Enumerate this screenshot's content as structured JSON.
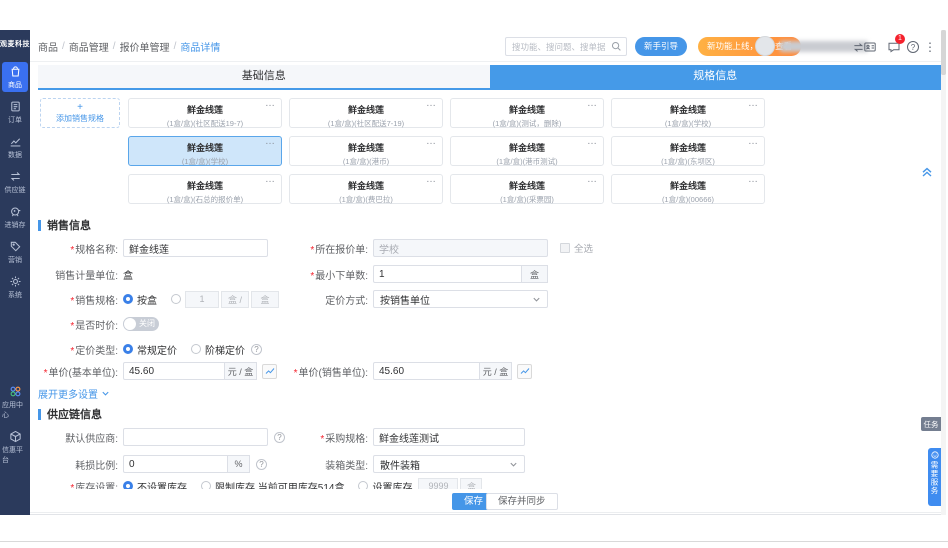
{
  "app": {
    "logo": "观麦科技"
  },
  "colors": {
    "accent": "#4596e8",
    "sidebar": "#2b3a5c",
    "active_tile": "#3a70f0",
    "orange": "#ff9a43",
    "badge_red": "#f5222d",
    "selected_card": "#cfe6fa"
  },
  "sidebar": {
    "items": [
      {
        "id": "goods",
        "label": "商品",
        "icon": "bag-icon",
        "active": true
      },
      {
        "id": "orders",
        "label": "订单",
        "icon": "order-icon",
        "active": false
      },
      {
        "id": "data",
        "label": "数据",
        "icon": "chart-icon",
        "active": false
      },
      {
        "id": "supply-chain",
        "label": "供应链",
        "icon": "swap-arrows-icon",
        "active": false
      },
      {
        "id": "inventory",
        "label": "进销存",
        "icon": "piggy-icon",
        "active": false
      },
      {
        "id": "marketing",
        "label": "营销",
        "icon": "tag-icon",
        "active": false
      },
      {
        "id": "system",
        "label": "系统",
        "icon": "gear-icon",
        "active": false
      }
    ],
    "bottom_items": [
      {
        "id": "app-center",
        "label": "应用中心",
        "icon": "apps-icon",
        "active": false
      },
      {
        "id": "info-platform",
        "label": "信惠平台",
        "icon": "cube-icon",
        "active": false
      }
    ]
  },
  "header": {
    "breadcrumb": [
      "商品",
      "商品管理",
      "报价单管理",
      "商品详情"
    ],
    "search_placeholder": "搜功能、搜问题、搜单据",
    "guide_button": "新手引导",
    "promo_button": "新功能上线，点击查看",
    "message_badge": "1"
  },
  "tabs": [
    {
      "label": "基础信息",
      "active": false
    },
    {
      "label": "规格信息",
      "active": true
    }
  ],
  "specs": {
    "add_plus": "+",
    "add_button": "添加销售规格",
    "cards": [
      {
        "name": "鲜金线莲",
        "sub": "(1盒/盒)(社区配送19-7)",
        "selected": false
      },
      {
        "name": "鲜金线莲",
        "sub": "(1盒/盒)(社区配送7-19)",
        "selected": false
      },
      {
        "name": "鲜金线莲",
        "sub": "(1盒/盒)(测试，删除)",
        "selected": false
      },
      {
        "name": "鲜金线莲",
        "sub": "(1盒/盒)(学校)",
        "selected": false
      },
      {
        "name": "鲜金线莲",
        "sub": "(1盒/盒)(学校)",
        "selected": true
      },
      {
        "name": "鲜金线莲",
        "sub": "(1盒/盒)(港币)",
        "selected": false
      },
      {
        "name": "鲜金线莲",
        "sub": "(1盒/盒)(港币测试)",
        "selected": false
      },
      {
        "name": "鲜金线莲",
        "sub": "(1盒/盒)(东坝区)",
        "selected": false
      },
      {
        "name": "鲜金线莲",
        "sub": "(1盒/盒)(石总的报价单)",
        "selected": false
      },
      {
        "name": "鲜金线莲",
        "sub": "(1盒/盒)(费巴拉)",
        "selected": false
      },
      {
        "name": "鲜金线莲",
        "sub": "(1盒/盒)(采票园)",
        "selected": false
      },
      {
        "name": "鲜金线莲",
        "sub": "(1盒/盒)(00666)",
        "selected": false
      }
    ]
  },
  "sales": {
    "title": "销售信息",
    "rows": {
      "spec_name_label": "*规格名称:",
      "spec_name_value": "鲜金线莲",
      "quote_label": "*所在报价单:",
      "quote_value": "学校",
      "select_all_label": "全选",
      "unit_label": "销售计量单位:",
      "unit_value": "盒",
      "min_order_label": "*最小下单数:",
      "min_order_value": "1",
      "min_order_unit": "盒",
      "sale_spec_label": "*销售规格:",
      "sale_spec_radio": "按盒",
      "conv_value": "1",
      "conv_unit_a": "盒 /",
      "conv_unit_b": "盒",
      "pricing_label": "定价方式:",
      "pricing_value": "按销售单位",
      "time_price_label": "*是否时价:",
      "time_price_state": "关闭",
      "price_type_label": "*定价类型:",
      "price_type_r1": "常规定价",
      "price_type_r2": "阶梯定价",
      "base_price_label": "*单价(基本单位):",
      "base_price_value": "45.60",
      "base_price_unit": "元 / 盒",
      "sale_price_label": "*单价(销售单位):",
      "sale_price_value": "45.60",
      "sale_price_unit": "元 / 盒",
      "more_link": "展开更多设置"
    }
  },
  "supply": {
    "title": "供应链信息",
    "rows": {
      "supplier_label": "默认供应商:",
      "supplier_value": "",
      "purchase_label": "*采购规格:",
      "purchase_value": "鲜金线莲测试",
      "loss_label": "耗损比例:",
      "loss_value": "0",
      "loss_unit": "%",
      "box_label": "装箱类型:",
      "box_value": "散件装箱",
      "stock_label": "*库存设置:",
      "stock_r1": "不设置库存",
      "stock_r2": "限制库存 当前可用库存514盒",
      "stock_r3": "设置库存",
      "stock_value": "9999",
      "stock_unit": "盒"
    }
  },
  "footer": {
    "save": "保存",
    "save_sync": "保存并同步"
  },
  "floating": {
    "task": "任务",
    "service": "需要服务"
  }
}
